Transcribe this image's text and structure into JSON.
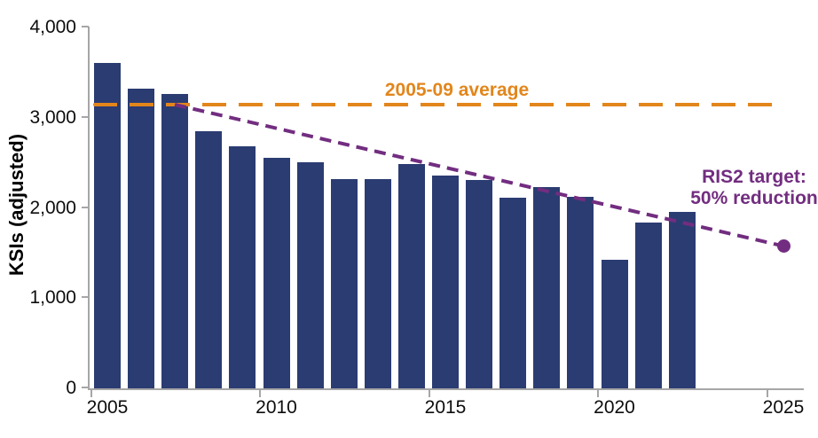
{
  "chart_data": {
    "type": "bar",
    "title": "",
    "xlabel": "",
    "ylabel": "KSIs (adjusted)",
    "ylim": [
      0,
      4000
    ],
    "grid": false,
    "legend": "none",
    "categories": [
      2005,
      2006,
      2007,
      2008,
      2009,
      2010,
      2011,
      2012,
      2013,
      2014,
      2015,
      2016,
      2017,
      2018,
      2019,
      2020,
      2021,
      2022
    ],
    "values": [
      3600,
      3310,
      3250,
      2840,
      2670,
      2550,
      2500,
      2310,
      2310,
      2480,
      2350,
      2300,
      2100,
      2220,
      2110,
      1420,
      1830,
      1950
    ],
    "yticks": [
      0,
      1000,
      2000,
      3000,
      4000
    ],
    "ytick_labels": [
      "0",
      "1,000",
      "2,000",
      "3,000",
      "4,000"
    ],
    "xticks": [
      2005,
      2010,
      2015,
      2020,
      2025
    ],
    "xtick_labels": [
      "2005",
      "2010",
      "2015",
      "2020",
      "2025"
    ],
    "xrange": [
      2005,
      2025
    ],
    "annotations": {
      "average_line": {
        "label": "2005-09 average",
        "value": 3135,
        "span_years": [
          2005,
          2025
        ],
        "style": "dashed"
      },
      "target_line": {
        "label_line1": "RIS2 target:",
        "label_line2": "50% reduction",
        "start": {
          "year": 2007,
          "value": 3135
        },
        "end": {
          "year": 2025,
          "value": 1568
        },
        "style": "dashed",
        "end_marker": "dot"
      }
    },
    "colors": {
      "bar": "#2b3c72",
      "average_line": "#e2861c",
      "target_line": "#722d80",
      "axis": "#a6a6a6",
      "text": "#0d0d0d"
    }
  }
}
